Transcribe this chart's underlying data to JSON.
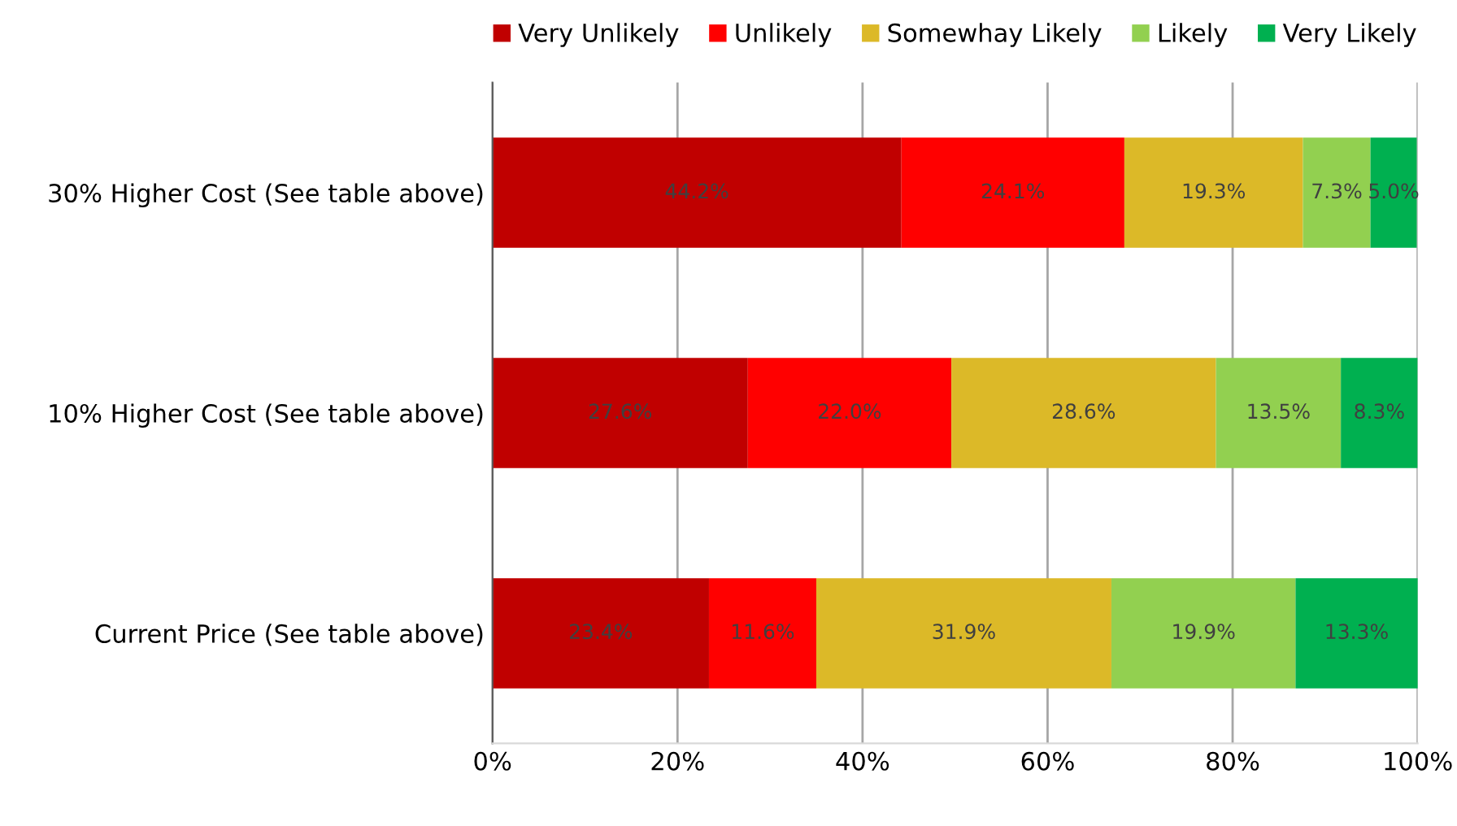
{
  "chart_data": {
    "type": "bar",
    "orientation": "horizontal",
    "stacked": true,
    "categories": [
      "30% Higher Cost (See table above)",
      "10% Higher Cost (See table above)",
      "Current Price (See table above)"
    ],
    "series": [
      {
        "name": "Very Unlikely",
        "color": "#c00000",
        "values": [
          44.2,
          27.6,
          23.4
        ],
        "value_labels": [
          "44.2%",
          "27.6%",
          "23.4%"
        ]
      },
      {
        "name": "Unlikely",
        "color": "#ff0000",
        "values": [
          24.1,
          22.0,
          11.6
        ],
        "value_labels": [
          "24.1%",
          "22.0%",
          "11.6%"
        ]
      },
      {
        "name": "Somewhay Likely",
        "color": "#dcb928",
        "values": [
          19.3,
          28.6,
          31.9
        ],
        "value_labels": [
          "19.3%",
          "28.6%",
          "31.9%"
        ]
      },
      {
        "name": "Likely",
        "color": "#92d050",
        "values": [
          7.3,
          13.5,
          19.9
        ],
        "value_labels": [
          "7.3%",
          "13.5%",
          "19.9%"
        ]
      },
      {
        "name": "Very Likely",
        "color": "#00b050",
        "values": [
          5.0,
          8.3,
          13.3
        ],
        "value_labels": [
          "5.0%",
          "8.3%",
          "13.3%"
        ]
      }
    ],
    "xlim": [
      0,
      100
    ],
    "xticks": [
      {
        "value": 0,
        "label": "0%"
      },
      {
        "value": 20,
        "label": "20%"
      },
      {
        "value": 40,
        "label": "40%"
      },
      {
        "value": 60,
        "label": "60%"
      },
      {
        "value": 80,
        "label": "80%"
      },
      {
        "value": 100,
        "label": "100%"
      }
    ],
    "grid": "x",
    "legend": "top"
  }
}
